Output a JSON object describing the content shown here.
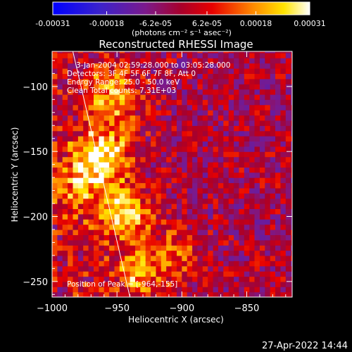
{
  "colorbar": {
    "tick_labels": [
      "-0.00031",
      "-0.00018",
      "-6.2e-05",
      "6.2e-05",
      "0.00018",
      "0.00031"
    ],
    "tick_values": [
      -0.00031,
      -0.00018,
      -6.2e-05,
      6.2e-05,
      0.00018,
      0.00031
    ],
    "range": [
      -0.00031,
      0.00031
    ],
    "unit_label": "(photons cm⁻² s⁻¹ asec⁻²)",
    "colors": [
      "#0000ff",
      "#4b2bbd",
      "#7a1a8a",
      "#b00000",
      "#ff2000",
      "#ff8c00",
      "#ffe600",
      "#ffffff"
    ]
  },
  "chart_data": {
    "type": "heatmap",
    "title": "Reconstructed RHESSI Image",
    "xlabel": "Heliocentric X (arcsec)",
    "ylabel": "Heliocentric Y (arcsec)",
    "xlim": [
      -1000,
      -815
    ],
    "ylim": [
      -262,
      -73
    ],
    "xticks": [
      -1000,
      -950,
      -900,
      -850
    ],
    "yticks": [
      -100,
      -150,
      -200,
      -250
    ],
    "xtick_labels": [
      "−1000",
      "−950",
      "−900",
      "−850"
    ],
    "ytick_labels": [
      "−100",
      "−150",
      "−200",
      "−250"
    ],
    "annotations": [
      "3-Jan-2004 02:59:28.000 to 03:05:28.000",
      "Detectors: 3F 4F 5F 6F 7F 8F, Att 0",
      "Energy Range: 25.0 - 50.0 keV",
      "Clean     Total counts: 7.31E+03"
    ],
    "peak_label": "Position of Peak = [-964,-155]",
    "peak_position": [
      -964,
      -155
    ],
    "limb_line": [
      [
        -984,
        -73
      ],
      [
        -940,
        -262
      ]
    ],
    "hot_sources": [
      {
        "x": -963,
        "y": -155,
        "value": 0.00031
      },
      {
        "x": -945,
        "y": -200,
        "value": 0.00024
      },
      {
        "x": -955,
        "y": -110,
        "value": 0.0002
      },
      {
        "x": -935,
        "y": -245,
        "value": 0.00018
      },
      {
        "x": -905,
        "y": -230,
        "value": 0.00012
      },
      {
        "x": -980,
        "y": -180,
        "value": 0.00016
      }
    ]
  },
  "footer": {
    "date": "27-Apr-2022 14:44"
  }
}
